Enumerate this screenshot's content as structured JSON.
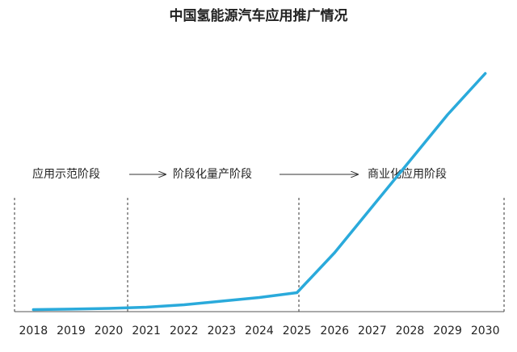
{
  "chart_data": {
    "type": "line",
    "title": "中国氢能源汽车应用推广情况",
    "annotations": [
      "应用示范阶段",
      "阶段化量产阶段",
      "商业化应用阶段"
    ],
    "x": [
      2018,
      2019,
      2020,
      2021,
      2022,
      2023,
      2024,
      2025,
      2026,
      2027,
      2028,
      2029,
      2030
    ],
    "values": [
      0.5,
      0.7,
      1,
      1.5,
      2.5,
      4,
      5.5,
      7.5,
      24,
      43,
      62,
      81,
      98
    ],
    "color": "#2aaadb",
    "xlim": [
      2017.5,
      2030.5
    ],
    "xticks": [
      2018,
      2019,
      2020,
      2021,
      2022,
      2023,
      2024,
      2025,
      2026,
      2027,
      2028,
      2029,
      2030
    ],
    "ylim": [
      0,
      100
    ]
  }
}
